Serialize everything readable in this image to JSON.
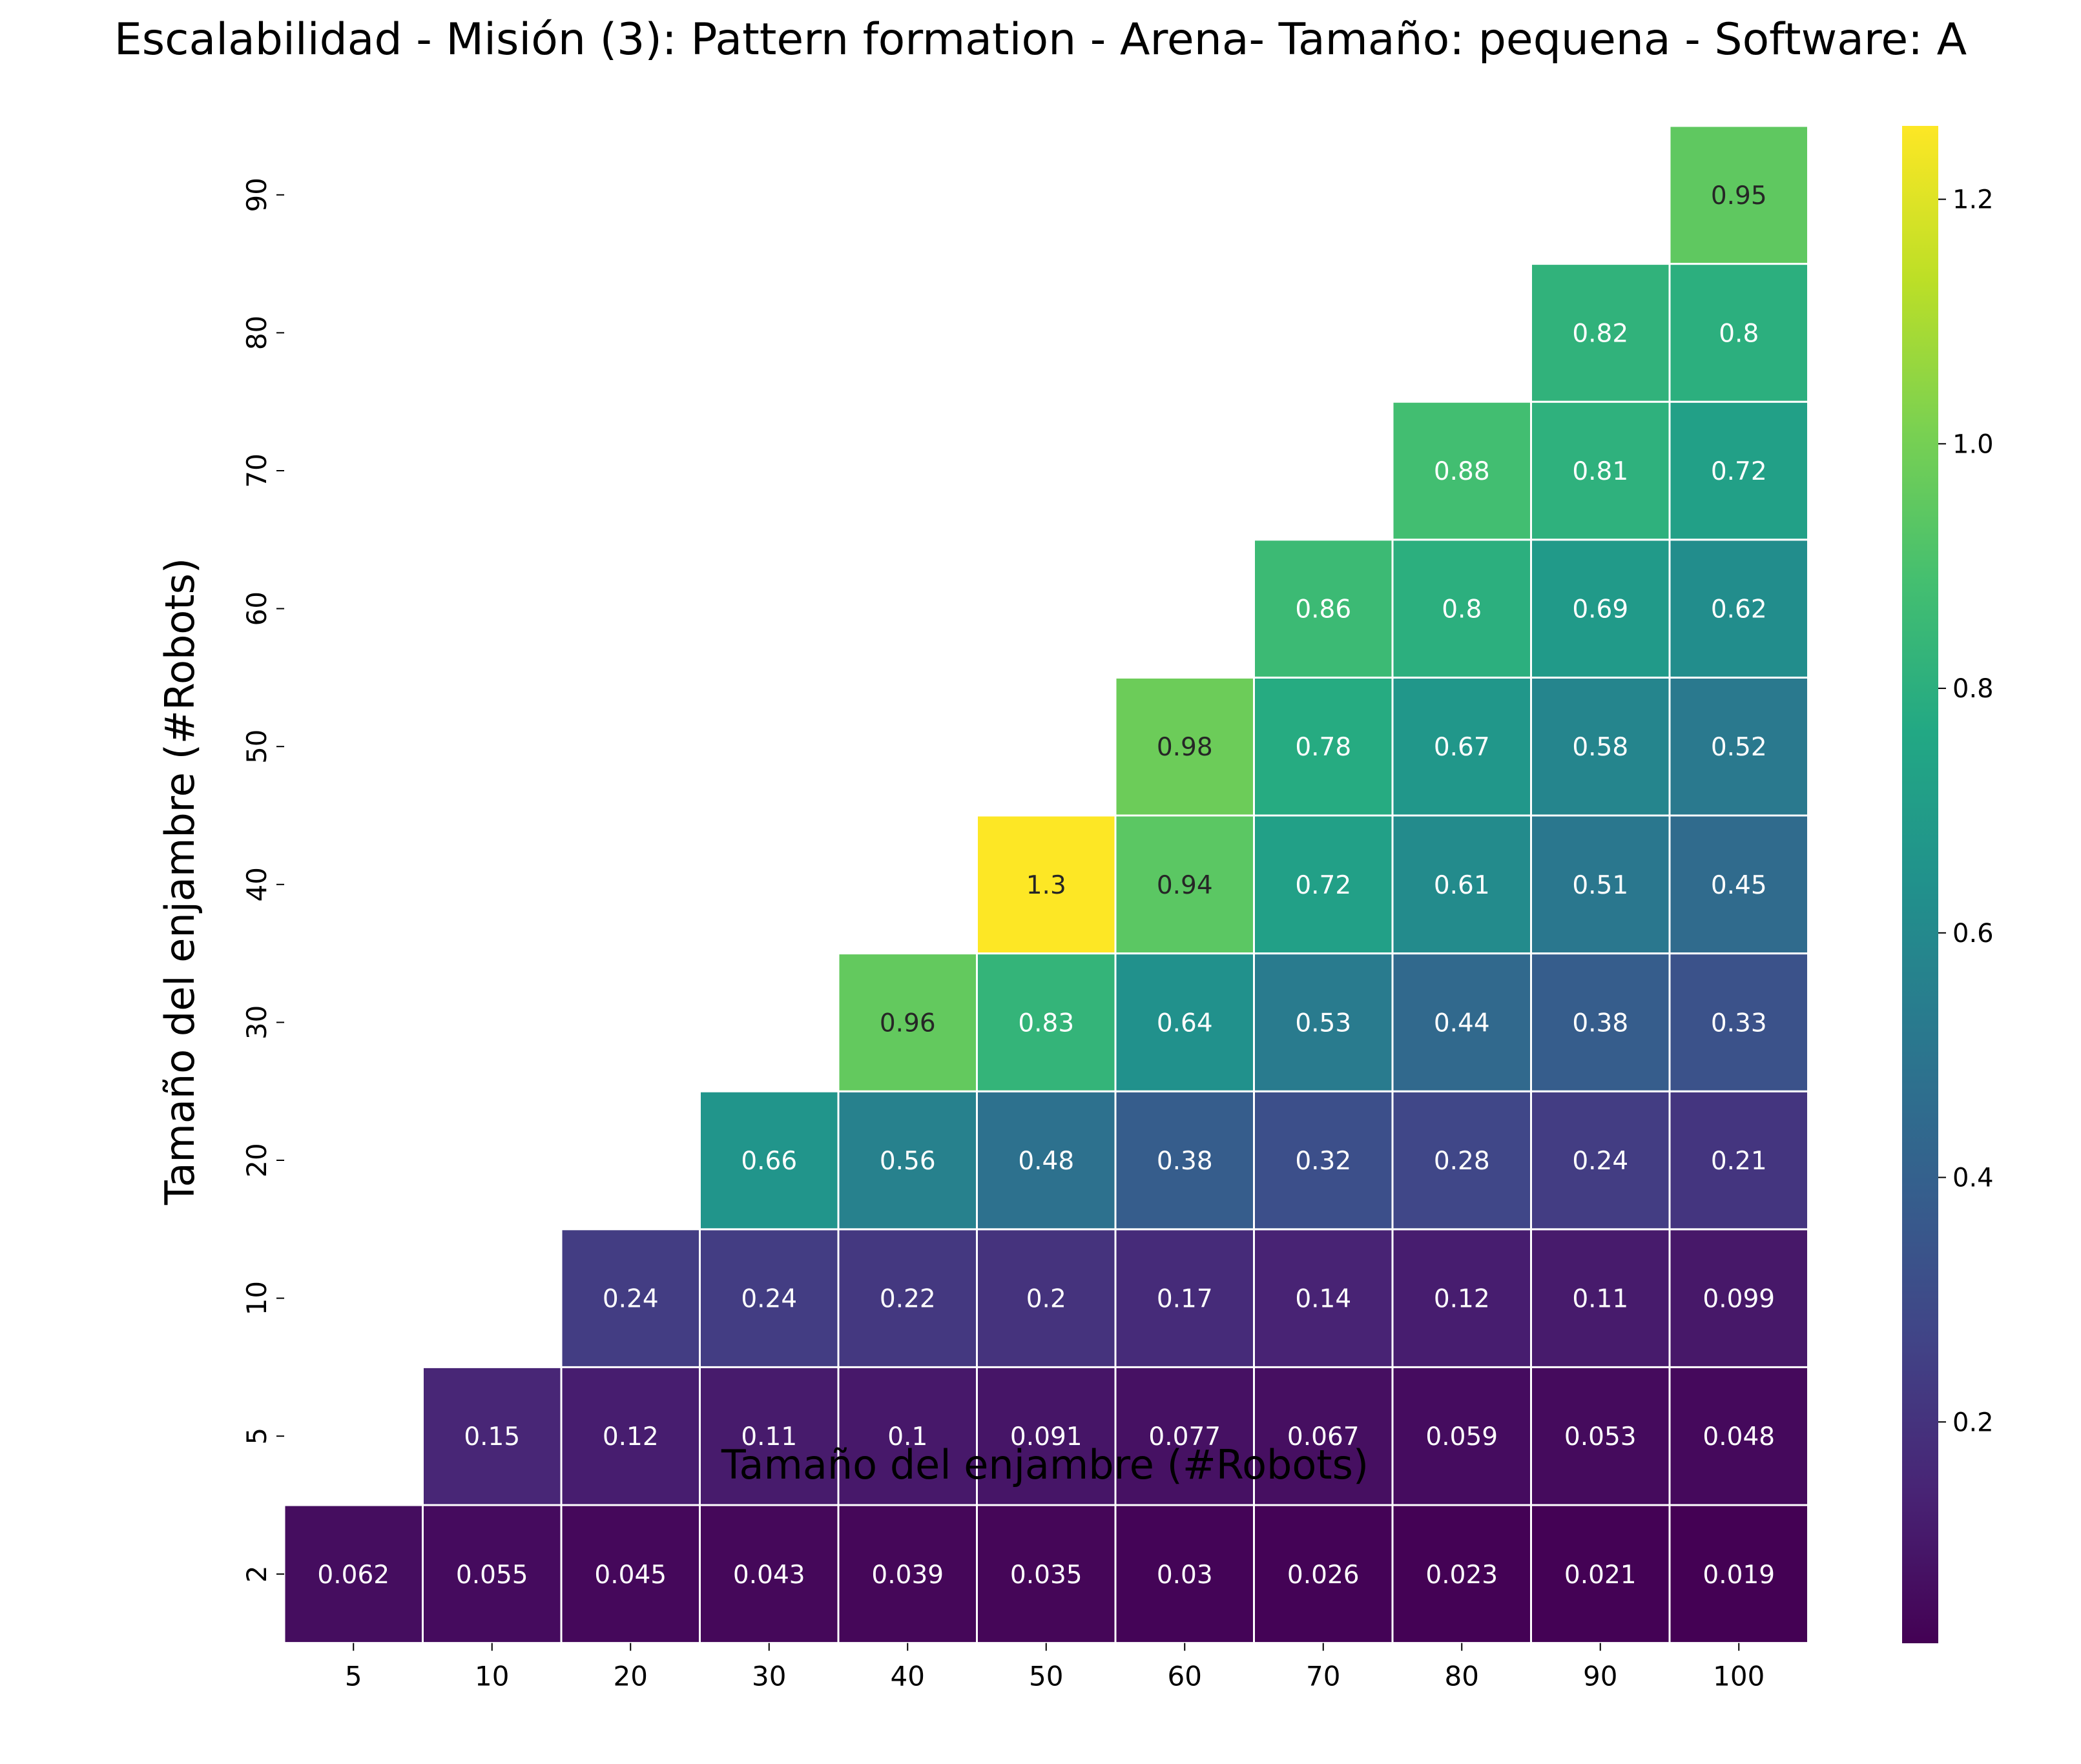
{
  "chart_data": {
    "type": "heatmap",
    "title": "Escalabilidad - Misión (3): Pattern formation - Arena- Tamaño: pequena - Software: A",
    "xlabel": "Tamaño del enjambre (#Robots)",
    "ylabel": "Tamaño del enjambre (#Robots)",
    "x_categories": [
      "5",
      "10",
      "20",
      "30",
      "40",
      "50",
      "60",
      "70",
      "80",
      "90",
      "100"
    ],
    "y_categories_bottom_to_top": [
      "2",
      "5",
      "10",
      "20",
      "30",
      "40",
      "50",
      "60",
      "70",
      "80",
      "90"
    ],
    "cells": [
      {
        "x": "5",
        "y": "2",
        "value": 0.062,
        "label": "0.062"
      },
      {
        "x": "10",
        "y": "2",
        "value": 0.055,
        "label": "0.055"
      },
      {
        "x": "20",
        "y": "2",
        "value": 0.045,
        "label": "0.045"
      },
      {
        "x": "30",
        "y": "2",
        "value": 0.043,
        "label": "0.043"
      },
      {
        "x": "40",
        "y": "2",
        "value": 0.039,
        "label": "0.039"
      },
      {
        "x": "50",
        "y": "2",
        "value": 0.035,
        "label": "0.035"
      },
      {
        "x": "60",
        "y": "2",
        "value": 0.03,
        "label": "0.03"
      },
      {
        "x": "70",
        "y": "2",
        "value": 0.026,
        "label": "0.026"
      },
      {
        "x": "80",
        "y": "2",
        "value": 0.023,
        "label": "0.023"
      },
      {
        "x": "90",
        "y": "2",
        "value": 0.021,
        "label": "0.021"
      },
      {
        "x": "100",
        "y": "2",
        "value": 0.019,
        "label": "0.019"
      },
      {
        "x": "10",
        "y": "5",
        "value": 0.15,
        "label": "0.15"
      },
      {
        "x": "20",
        "y": "5",
        "value": 0.12,
        "label": "0.12"
      },
      {
        "x": "30",
        "y": "5",
        "value": 0.11,
        "label": "0.11"
      },
      {
        "x": "40",
        "y": "5",
        "value": 0.1,
        "label": "0.1"
      },
      {
        "x": "50",
        "y": "5",
        "value": 0.091,
        "label": "0.091"
      },
      {
        "x": "60",
        "y": "5",
        "value": 0.077,
        "label": "0.077"
      },
      {
        "x": "70",
        "y": "5",
        "value": 0.067,
        "label": "0.067"
      },
      {
        "x": "80",
        "y": "5",
        "value": 0.059,
        "label": "0.059"
      },
      {
        "x": "90",
        "y": "5",
        "value": 0.053,
        "label": "0.053"
      },
      {
        "x": "100",
        "y": "5",
        "value": 0.048,
        "label": "0.048"
      },
      {
        "x": "20",
        "y": "10",
        "value": 0.24,
        "label": "0.24"
      },
      {
        "x": "30",
        "y": "10",
        "value": 0.24,
        "label": "0.24"
      },
      {
        "x": "40",
        "y": "10",
        "value": 0.22,
        "label": "0.22"
      },
      {
        "x": "50",
        "y": "10",
        "value": 0.2,
        "label": "0.2"
      },
      {
        "x": "60",
        "y": "10",
        "value": 0.17,
        "label": "0.17"
      },
      {
        "x": "70",
        "y": "10",
        "value": 0.14,
        "label": "0.14"
      },
      {
        "x": "80",
        "y": "10",
        "value": 0.12,
        "label": "0.12"
      },
      {
        "x": "90",
        "y": "10",
        "value": 0.11,
        "label": "0.11"
      },
      {
        "x": "100",
        "y": "10",
        "value": 0.099,
        "label": "0.099"
      },
      {
        "x": "30",
        "y": "20",
        "value": 0.66,
        "label": "0.66"
      },
      {
        "x": "40",
        "y": "20",
        "value": 0.56,
        "label": "0.56"
      },
      {
        "x": "50",
        "y": "20",
        "value": 0.48,
        "label": "0.48"
      },
      {
        "x": "60",
        "y": "20",
        "value": 0.38,
        "label": "0.38"
      },
      {
        "x": "70",
        "y": "20",
        "value": 0.32,
        "label": "0.32"
      },
      {
        "x": "80",
        "y": "20",
        "value": 0.28,
        "label": "0.28"
      },
      {
        "x": "90",
        "y": "20",
        "value": 0.24,
        "label": "0.24"
      },
      {
        "x": "100",
        "y": "20",
        "value": 0.21,
        "label": "0.21"
      },
      {
        "x": "40",
        "y": "30",
        "value": 0.96,
        "label": "0.96"
      },
      {
        "x": "50",
        "y": "30",
        "value": 0.83,
        "label": "0.83"
      },
      {
        "x": "60",
        "y": "30",
        "value": 0.64,
        "label": "0.64"
      },
      {
        "x": "70",
        "y": "30",
        "value": 0.53,
        "label": "0.53"
      },
      {
        "x": "80",
        "y": "30",
        "value": 0.44,
        "label": "0.44"
      },
      {
        "x": "90",
        "y": "30",
        "value": 0.38,
        "label": "0.38"
      },
      {
        "x": "100",
        "y": "30",
        "value": 0.33,
        "label": "0.33"
      },
      {
        "x": "50",
        "y": "40",
        "value": 1.26,
        "label": "1.3"
      },
      {
        "x": "60",
        "y": "40",
        "value": 0.94,
        "label": "0.94"
      },
      {
        "x": "70",
        "y": "40",
        "value": 0.72,
        "label": "0.72"
      },
      {
        "x": "80",
        "y": "40",
        "value": 0.61,
        "label": "0.61"
      },
      {
        "x": "90",
        "y": "40",
        "value": 0.51,
        "label": "0.51"
      },
      {
        "x": "100",
        "y": "40",
        "value": 0.45,
        "label": "0.45"
      },
      {
        "x": "60",
        "y": "50",
        "value": 0.98,
        "label": "0.98"
      },
      {
        "x": "70",
        "y": "50",
        "value": 0.78,
        "label": "0.78"
      },
      {
        "x": "80",
        "y": "50",
        "value": 0.67,
        "label": "0.67"
      },
      {
        "x": "90",
        "y": "50",
        "value": 0.58,
        "label": "0.58"
      },
      {
        "x": "100",
        "y": "50",
        "value": 0.52,
        "label": "0.52"
      },
      {
        "x": "70",
        "y": "60",
        "value": 0.86,
        "label": "0.86"
      },
      {
        "x": "80",
        "y": "60",
        "value": 0.8,
        "label": "0.8"
      },
      {
        "x": "90",
        "y": "60",
        "value": 0.69,
        "label": "0.69"
      },
      {
        "x": "100",
        "y": "60",
        "value": 0.62,
        "label": "0.62"
      },
      {
        "x": "80",
        "y": "70",
        "value": 0.88,
        "label": "0.88"
      },
      {
        "x": "90",
        "y": "70",
        "value": 0.81,
        "label": "0.81"
      },
      {
        "x": "100",
        "y": "70",
        "value": 0.72,
        "label": "0.72"
      },
      {
        "x": "90",
        "y": "80",
        "value": 0.82,
        "label": "0.82"
      },
      {
        "x": "100",
        "y": "80",
        "value": 0.8,
        "label": "0.8"
      },
      {
        "x": "100",
        "y": "90",
        "value": 0.95,
        "label": "0.95"
      }
    ],
    "colormap": "viridis",
    "color_range": [
      0.019,
      1.26
    ],
    "colorbar_ticks": [
      "0.2",
      "0.4",
      "0.6",
      "0.8",
      "1.0",
      "1.2"
    ],
    "cell_border_color": "#ffffff",
    "grid": false
  }
}
